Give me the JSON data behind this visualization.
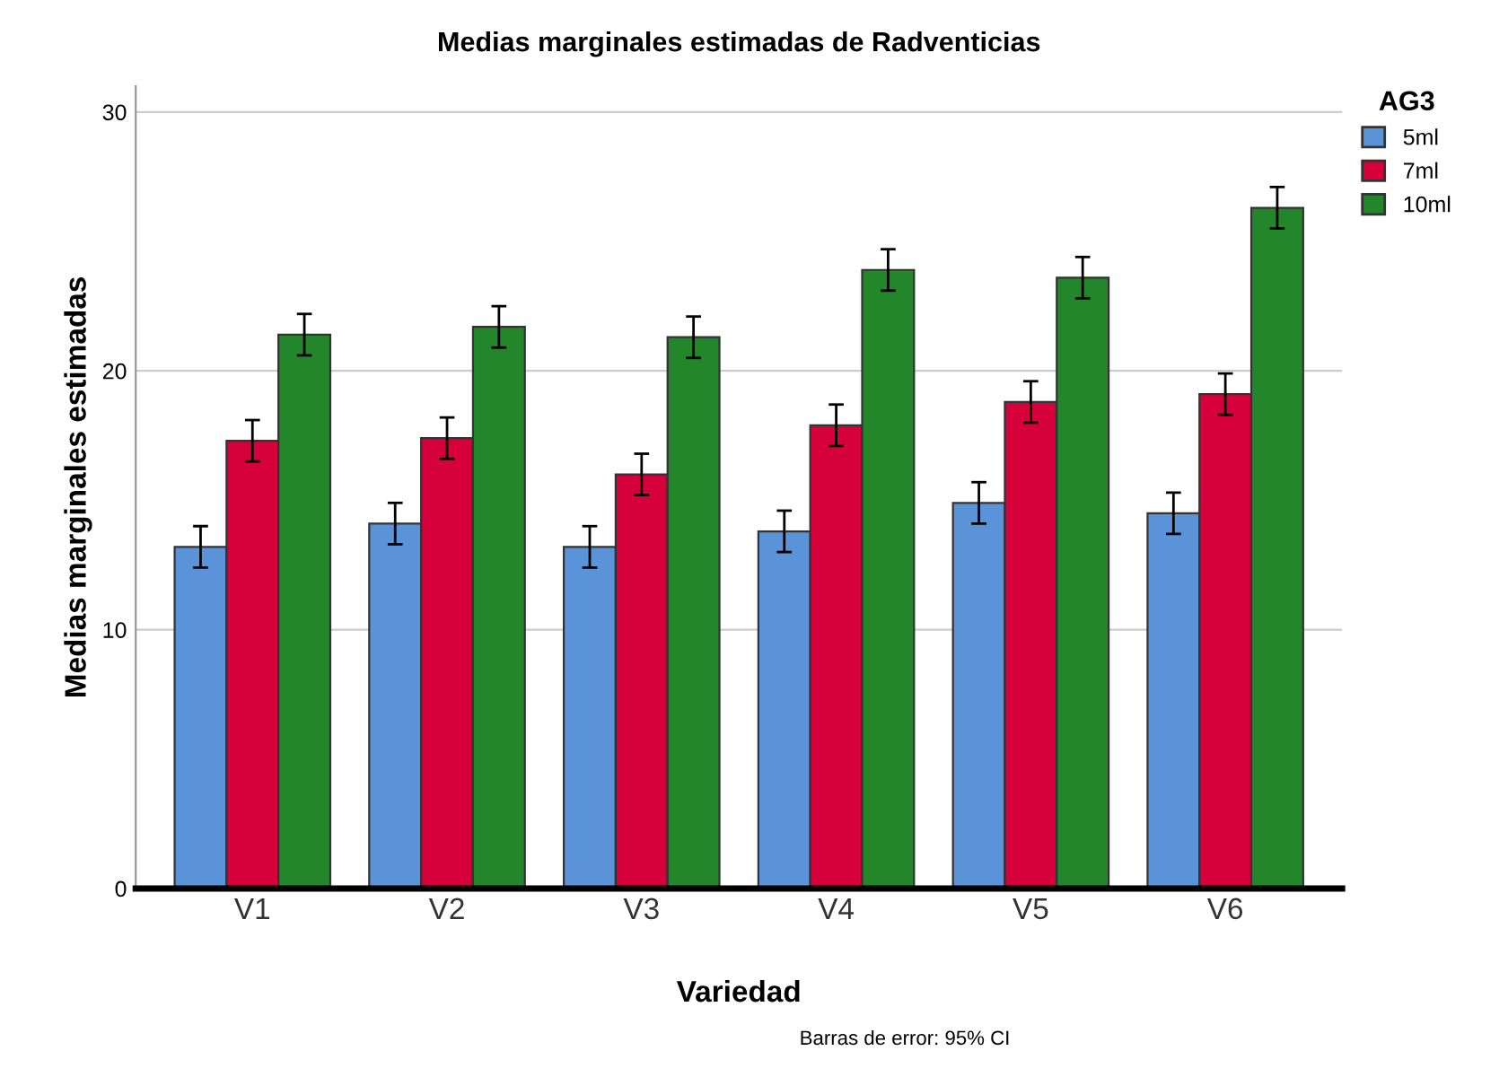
{
  "chart_data": {
    "type": "bar",
    "title": "Medias marginales estimadas de Radventicias",
    "xlabel": "Variedad",
    "ylabel": "Medias marginales estimadas",
    "legend_title": "AG3",
    "annotations": [
      "Barras de error: 95% CI"
    ],
    "categories": [
      "V1",
      "V2",
      "V3",
      "V4",
      "V5",
      "V6"
    ],
    "series": [
      {
        "name": "5ml",
        "color": "#5b93d8",
        "values": [
          13.2,
          14.1,
          13.2,
          13.8,
          14.9,
          14.5
        ],
        "errors": [
          0.8,
          0.8,
          0.8,
          0.8,
          0.8,
          0.8
        ]
      },
      {
        "name": "7ml",
        "color": "#d6003a",
        "values": [
          17.3,
          17.4,
          16.0,
          17.9,
          18.8,
          19.1
        ],
        "errors": [
          0.8,
          0.8,
          0.8,
          0.8,
          0.8,
          0.8
        ]
      },
      {
        "name": "10ml",
        "color": "#23862a",
        "values": [
          21.4,
          21.7,
          21.3,
          23.9,
          23.6,
          26.3
        ],
        "errors": [
          0.8,
          0.8,
          0.8,
          0.8,
          0.8,
          0.8
        ]
      }
    ],
    "ylim": [
      0,
      31
    ],
    "yticks": [
      0,
      10,
      20,
      30
    ],
    "grid": "y",
    "legend": "top right"
  }
}
